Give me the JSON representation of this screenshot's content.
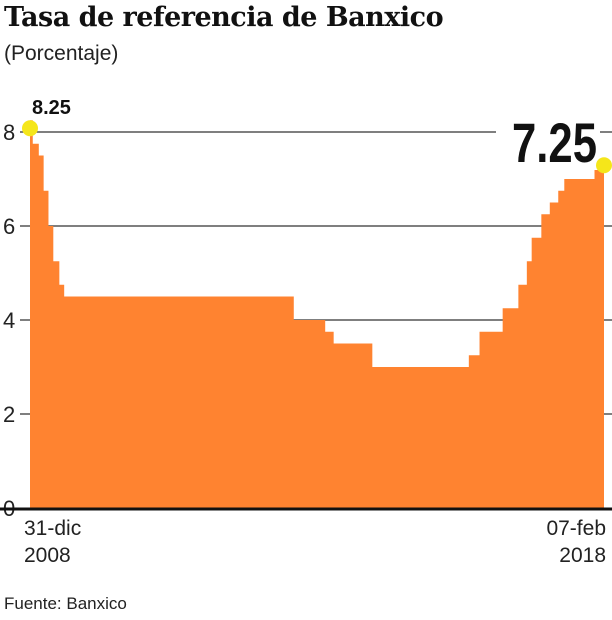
{
  "chart_data": {
    "type": "area",
    "title": "Tasa de referencia de Banxico",
    "subtitle": "(Porcentaje)",
    "source": "Fuente: Banxico",
    "step": true,
    "color": "#FF8330",
    "highlight_color": "#F5E61A",
    "ylim": [
      0,
      8.25
    ],
    "yticks": [
      "0",
      "2",
      "4",
      "6",
      "8"
    ],
    "grid": true,
    "x_labels": [
      {
        "line1": "31-dic",
        "line2": "2008"
      },
      {
        "line1": "07-feb",
        "line2": "2018"
      }
    ],
    "x_range": [
      "2008-12-31",
      "2018-02-07"
    ],
    "annotations": [
      {
        "text": "8.25",
        "x": "2008-12-31",
        "y": 8.25
      },
      {
        "text": "7.25",
        "x": "2018-02-07",
        "y": 7.25
      }
    ],
    "points": [
      [
        "2008-12-31",
        8.25
      ],
      [
        "2009-01-16",
        7.75
      ],
      [
        "2009-02-20",
        7.5
      ],
      [
        "2009-03-20",
        6.75
      ],
      [
        "2009-04-17",
        6.0
      ],
      [
        "2009-05-15",
        5.25
      ],
      [
        "2009-06-19",
        4.75
      ],
      [
        "2009-07-17",
        4.5
      ],
      [
        "2013-03-08",
        4.0
      ],
      [
        "2013-09-06",
        3.75
      ],
      [
        "2013-10-25",
        3.5
      ],
      [
        "2014-06-06",
        3.0
      ],
      [
        "2015-12-17",
        3.25
      ],
      [
        "2016-02-17",
        3.75
      ],
      [
        "2016-06-30",
        4.25
      ],
      [
        "2016-09-29",
        4.75
      ],
      [
        "2016-11-17",
        5.25
      ],
      [
        "2016-12-15",
        5.75
      ],
      [
        "2017-02-09",
        6.25
      ],
      [
        "2017-03-30",
        6.5
      ],
      [
        "2017-05-18",
        6.75
      ],
      [
        "2017-06-22",
        7.0
      ],
      [
        "2017-12-14",
        7.25
      ],
      [
        "2018-02-07",
        7.25
      ]
    ]
  }
}
